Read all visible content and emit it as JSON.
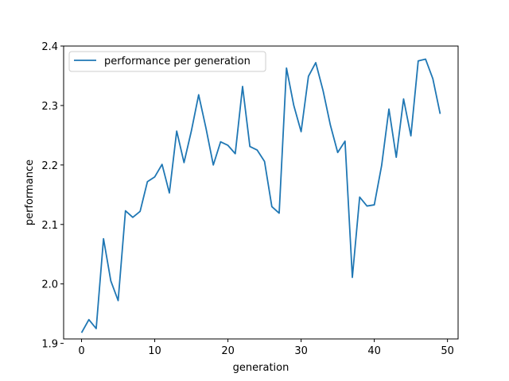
{
  "chart_data": {
    "type": "line",
    "title": "",
    "xlabel": "generation",
    "ylabel": "performance",
    "xlim": [
      -2.45,
      51.45
    ],
    "ylim": [
      1.9075,
      2.4
    ],
    "xticks": [
      0,
      10,
      20,
      30,
      40,
      50
    ],
    "yticks": [
      1.9,
      2.0,
      2.1,
      2.2,
      2.3,
      2.4
    ],
    "ytick_labels": [
      "1.9",
      "2.0",
      "2.1",
      "2.2",
      "2.3",
      "2.4"
    ],
    "grid": false,
    "legend_position": "top-left",
    "series": [
      {
        "name": "performance per generation",
        "color": "#1f77b4",
        "x": [
          0,
          1,
          2,
          3,
          4,
          5,
          6,
          7,
          8,
          9,
          10,
          11,
          12,
          13,
          14,
          15,
          16,
          17,
          18,
          19,
          20,
          21,
          22,
          23,
          24,
          25,
          26,
          27,
          28,
          29,
          30,
          31,
          32,
          33,
          34,
          35,
          36,
          37,
          38,
          39,
          40,
          41,
          42,
          43,
          44,
          45,
          46,
          47,
          48,
          49
        ],
        "y": [
          1.918,
          1.94,
          1.925,
          2.076,
          2.005,
          1.972,
          2.123,
          2.112,
          2.122,
          2.172,
          2.18,
          2.201,
          2.153,
          2.257,
          2.204,
          2.257,
          2.318,
          2.262,
          2.2,
          2.239,
          2.233,
          2.219,
          2.332,
          2.231,
          2.225,
          2.206,
          2.13,
          2.119,
          2.363,
          2.3,
          2.256,
          2.349,
          2.372,
          2.325,
          2.267,
          2.221,
          2.24,
          2.011,
          2.146,
          2.131,
          2.133,
          2.199,
          2.294,
          2.213,
          2.311,
          2.249,
          2.375,
          2.378,
          2.345,
          2.286
        ]
      }
    ]
  }
}
